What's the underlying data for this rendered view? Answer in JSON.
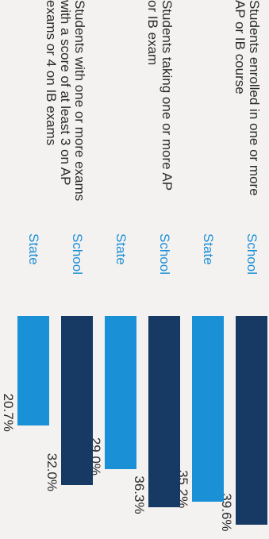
{
  "chart_data": {
    "type": "bar",
    "orientation": "horizontal",
    "categories": [
      "Students enrolled in one or more AP or IB course",
      "Students taking one or more AP or IB exam",
      "Students with one or more exams with a score of at least 3 on AP exams or 4 on IB exams"
    ],
    "series": [
      {
        "name": "School",
        "values": [
          39.6,
          36.3,
          32.0
        ],
        "labels": [
          "39.6%",
          "36.3%",
          "32.0%"
        ],
        "color": "#163a63"
      },
      {
        "name": "State",
        "values": [
          35.2,
          29.0,
          20.7
        ],
        "labels": [
          "35.2%",
          "29.0%",
          "20.7%"
        ],
        "color": "#1a90d6"
      }
    ],
    "xlim": [
      0,
      100
    ],
    "grid": false,
    "legend": "none"
  }
}
